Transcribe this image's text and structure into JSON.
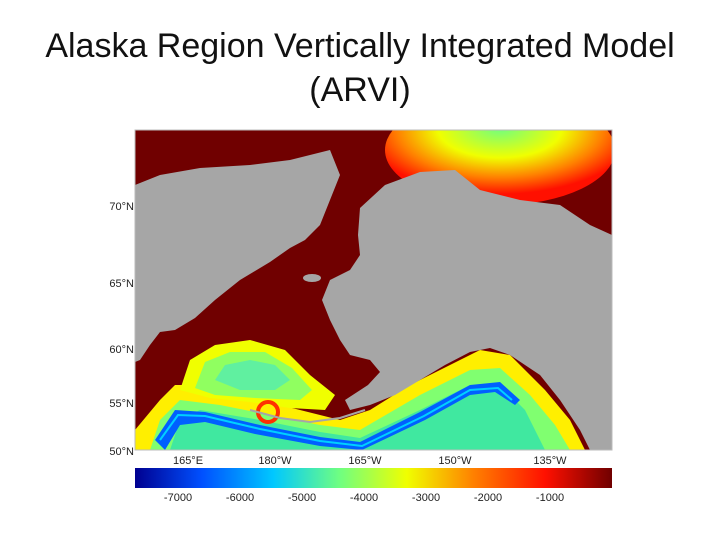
{
  "slide": {
    "title_line1": "Alaska Region Vertically Integrated Model",
    "title_line2": "(ARVI)"
  },
  "map": {
    "latitude_labels": [
      "70°N",
      "65°N",
      "60°N",
      "55°N",
      "50°N"
    ],
    "longitude_labels": [
      "165°E",
      "180°W",
      "165°W",
      "150°W",
      "135°W"
    ],
    "land_color": "#a6a6a6",
    "shallow_color": "#700000"
  },
  "colorbar": {
    "tick_labels": [
      "-7000",
      "-6000",
      "-5000",
      "-4000",
      "-3000",
      "-2000",
      "-1000"
    ],
    "stops": [
      "#000090",
      "#0050ff",
      "#00c8ff",
      "#70ff80",
      "#f0ff00",
      "#ff8000",
      "#ff1000",
      "#700000"
    ]
  }
}
